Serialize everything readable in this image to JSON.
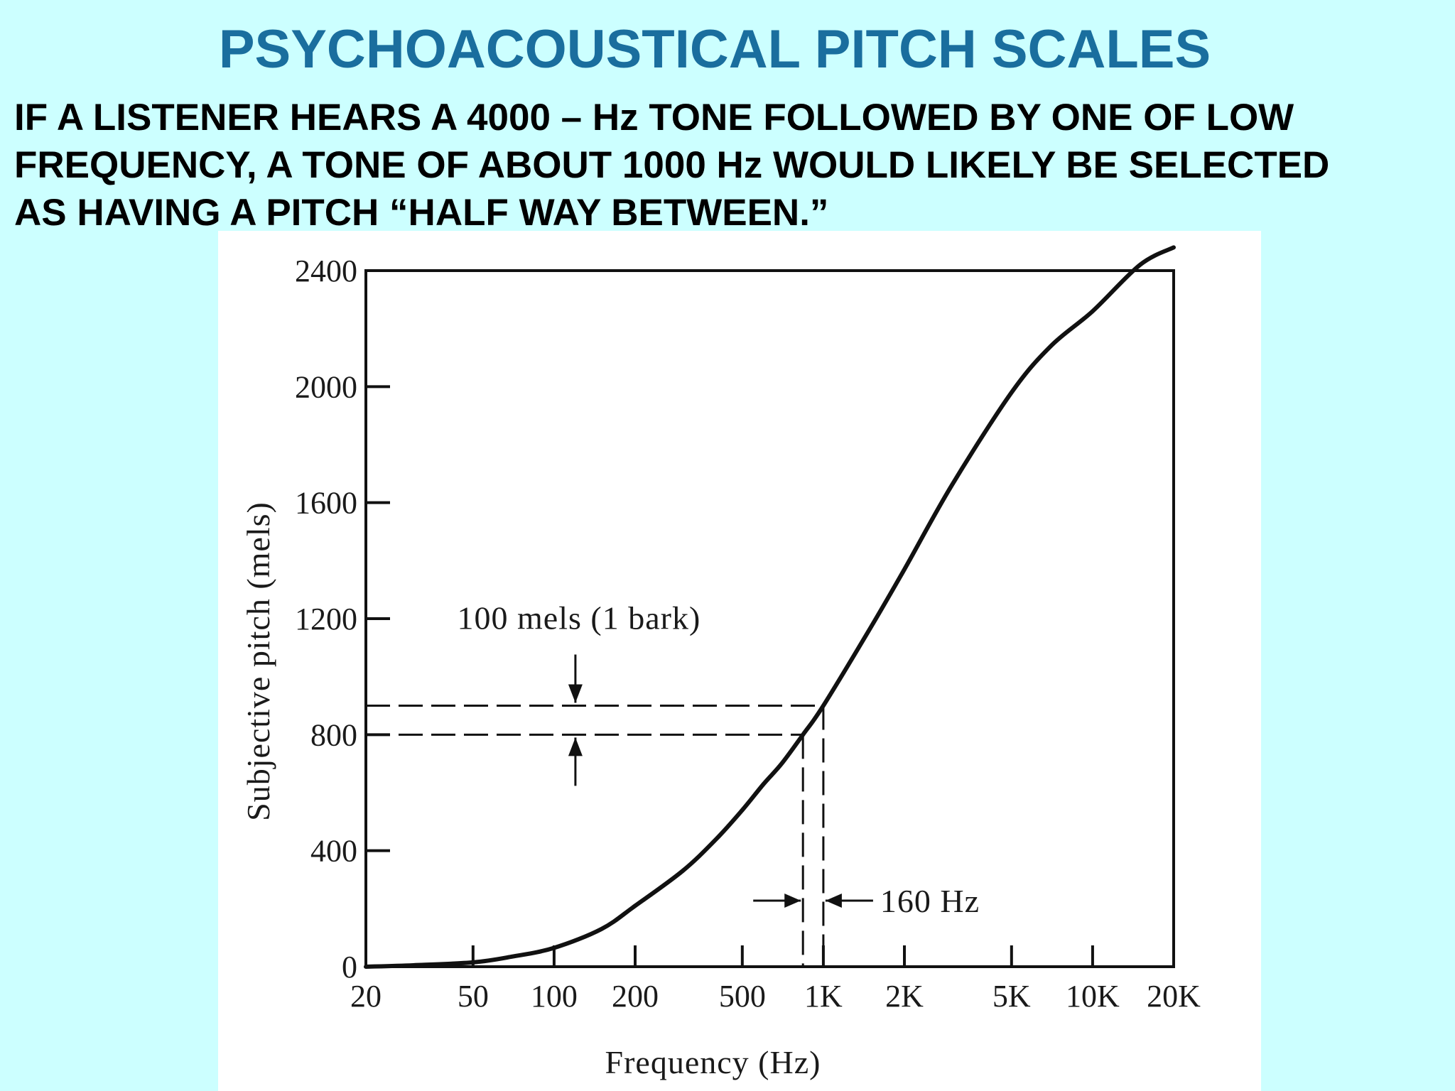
{
  "slide": {
    "title": "PSYCHOACOUSTICAL PITCH SCALES",
    "body_lines": [
      "IF A LISTENER HEARS A 4000 – Hz TONE FOLLOWED BY ONE OF LOW",
      "FREQUENCY, A TONE OF ABOUT 1000 Hz WOULD LIKELY BE SELECTED",
      "AS HAVING A PITCH “HALF WAY BETWEEN.”"
    ]
  },
  "chart_data": {
    "type": "line",
    "xlabel": "Frequency (Hz)",
    "ylabel": "Subjective pitch (mels)",
    "x_scale": "log",
    "xlim": [
      20,
      20000
    ],
    "ylim": [
      0,
      2400
    ],
    "x_ticks": [
      {
        "value": 20,
        "label": "20"
      },
      {
        "value": 50,
        "label": "50"
      },
      {
        "value": 100,
        "label": "100"
      },
      {
        "value": 200,
        "label": "200"
      },
      {
        "value": 500,
        "label": "500"
      },
      {
        "value": 1000,
        "label": "1K"
      },
      {
        "value": 2000,
        "label": "2K"
      },
      {
        "value": 5000,
        "label": "5K"
      },
      {
        "value": 10000,
        "label": "10K"
      },
      {
        "value": 20000,
        "label": "20K"
      }
    ],
    "y_ticks": [
      {
        "value": 0,
        "label": "0"
      },
      {
        "value": 400,
        "label": "400"
      },
      {
        "value": 800,
        "label": "800"
      },
      {
        "value": 1200,
        "label": "1200"
      },
      {
        "value": 1600,
        "label": "1600"
      },
      {
        "value": 2000,
        "label": "2000"
      },
      {
        "value": 2400,
        "label": "2400"
      }
    ],
    "series": [
      {
        "x": [
          20,
          30,
          50,
          70,
          100,
          150,
          200,
          300,
          400,
          500,
          600,
          700,
          840,
          1000,
          1500,
          2000,
          3000,
          5000,
          7000,
          10000,
          15000,
          20000
        ],
        "y": [
          0,
          5,
          15,
          35,
          65,
          130,
          210,
          330,
          440,
          540,
          630,
          700,
          800,
          900,
          1170,
          1370,
          1660,
          1980,
          2140,
          2260,
          2420,
          2480
        ]
      }
    ],
    "annotations": {
      "bark_label": "100 mels (1 bark)",
      "bark_lines_mels": [
        800,
        900
      ],
      "bark_arrow_x": 120,
      "hz_label": "160 Hz",
      "hz_lines": [
        840,
        1000
      ]
    },
    "grid": false
  }
}
